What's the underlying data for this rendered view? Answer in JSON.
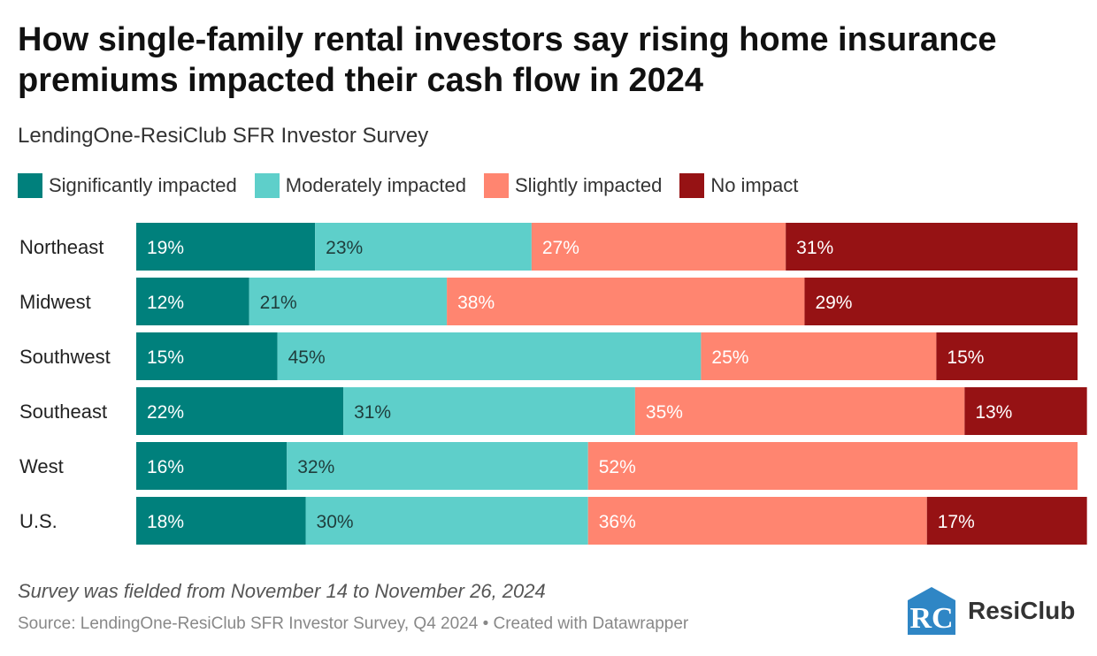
{
  "header": {
    "title": "How single-family rental investors say rising home insurance premiums impacted their cash flow in 2024",
    "subtitle": "LendingOne-ResiClub SFR Investor Survey"
  },
  "chart_data": {
    "type": "bar",
    "orientation": "horizontal",
    "stacked": true,
    "categories": [
      "Northeast",
      "Midwest",
      "Southwest",
      "Southeast",
      "West",
      "U.S."
    ],
    "series": [
      {
        "name": "Significantly impacted",
        "color": "#00807c",
        "values": [
          19,
          12,
          15,
          22,
          16,
          18
        ]
      },
      {
        "name": "Moderately impacted",
        "color": "#5ecfca",
        "values": [
          23,
          21,
          45,
          31,
          32,
          30
        ]
      },
      {
        "name": "Slightly impacted",
        "color": "#ff8570",
        "values": [
          27,
          38,
          25,
          35,
          52,
          36
        ]
      },
      {
        "name": "No impact",
        "color": "#961214",
        "values": [
          31,
          29,
          15,
          13,
          0,
          17
        ]
      }
    ],
    "labels": [
      [
        "19%",
        "23%",
        "27%",
        "31%"
      ],
      [
        "12%",
        "21%",
        "38%",
        "29%"
      ],
      [
        "15%",
        "45%",
        "25%",
        "15%"
      ],
      [
        "22%",
        "31%",
        "35%",
        "13%"
      ],
      [
        "16%",
        "32%",
        "52%",
        ""
      ],
      [
        "18%",
        "30%",
        "36%",
        "17%"
      ]
    ],
    "xlim": [
      0,
      100
    ],
    "legend_position": "top-left",
    "grid": false
  },
  "footer": {
    "note": "Survey was fielded from November 14 to November 26, 2024",
    "source": "Source: LendingOne-ResiClub SFR Investor Survey, Q4 2024 • Created with Datawrapper",
    "logo_mark": "RC",
    "logo_text": "ResiClub"
  }
}
